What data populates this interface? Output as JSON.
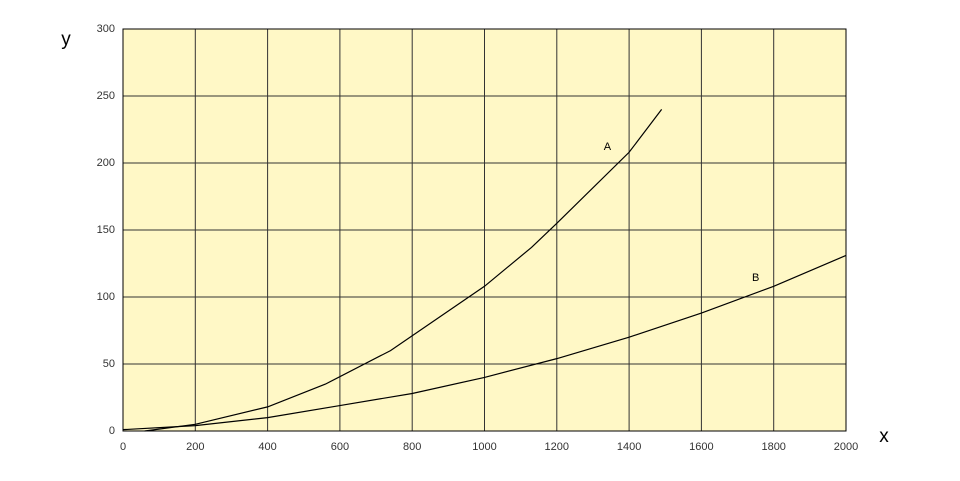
{
  "chart_data": {
    "type": "line",
    "x_label": "x",
    "y_label": "y",
    "series": [
      {
        "name": "A",
        "color": "#000000",
        "x": [
          60,
          200,
          400,
          560,
          740,
          1000,
          1130,
          1200,
          1400,
          1490
        ],
        "values": [
          0,
          5,
          18,
          35,
          60,
          108,
          137,
          155,
          208,
          240
        ]
      },
      {
        "name": "B",
        "color": "#000000",
        "x": [
          0,
          200,
          400,
          600,
          800,
          1000,
          1200,
          1400,
          1600,
          1800,
          2000
        ],
        "values": [
          1,
          4,
          10,
          19,
          28,
          40,
          54,
          70,
          88,
          108,
          131
        ]
      }
    ],
    "annotations": [
      {
        "text": "A",
        "x": 1340,
        "y": 212
      },
      {
        "text": "B",
        "x": 1750,
        "y": 114
      }
    ],
    "xlim": [
      0,
      2000
    ],
    "xticks": [
      0,
      200,
      400,
      600,
      800,
      1000,
      1200,
      1400,
      1600,
      1800,
      2000
    ],
    "ylim": [
      0,
      300
    ],
    "yticks": [
      0,
      50,
      100,
      150,
      200,
      250,
      300
    ],
    "grid": true,
    "background": "#fff8c6",
    "grid_color": "#333333"
  }
}
